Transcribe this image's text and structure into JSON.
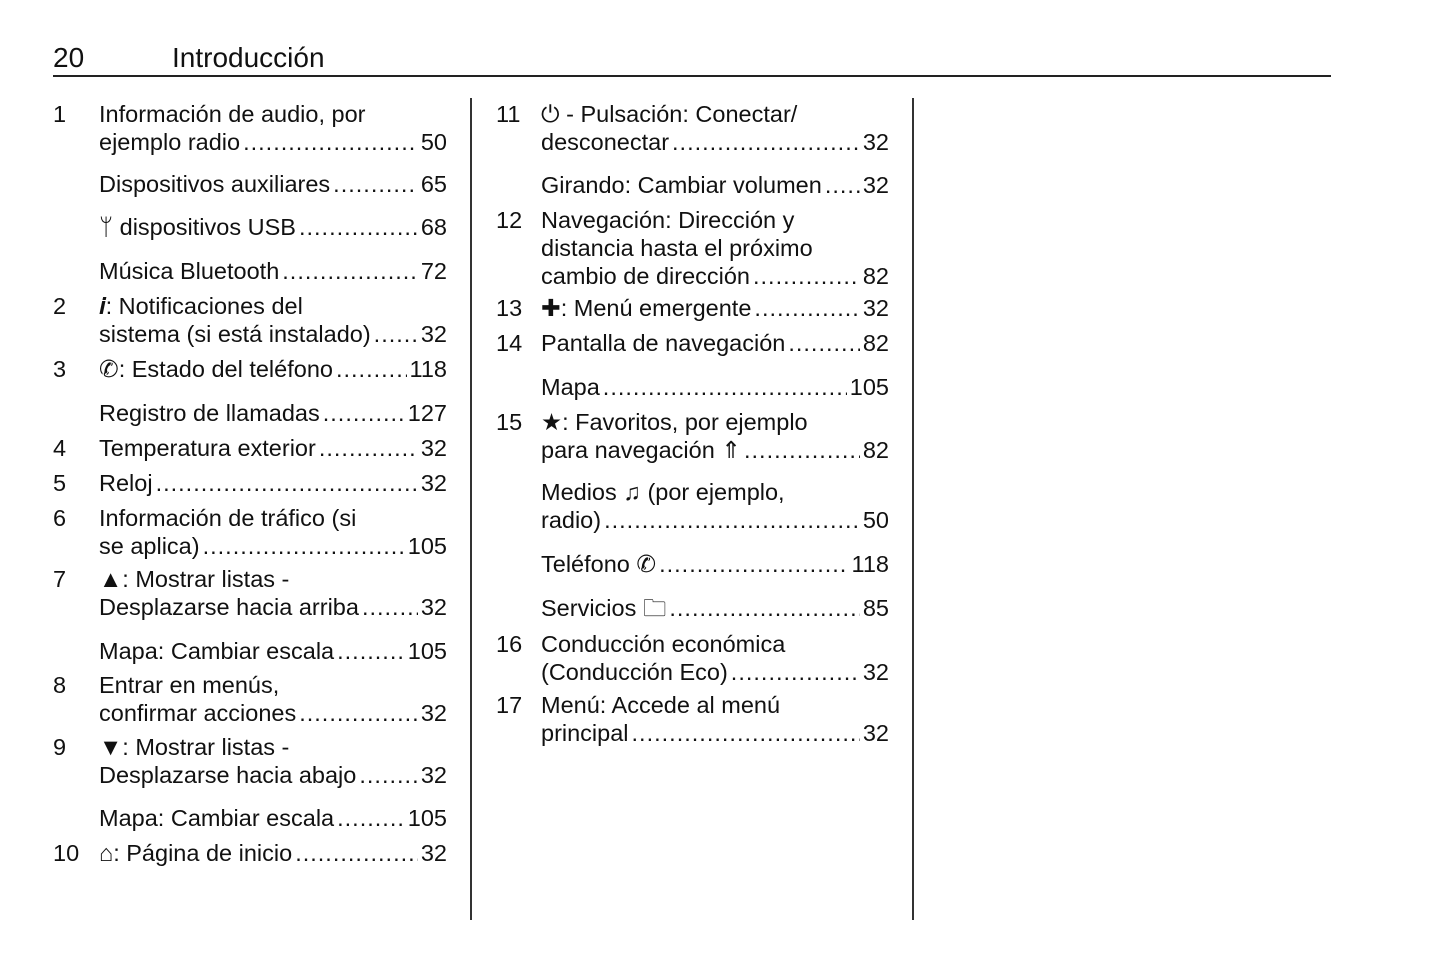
{
  "header": {
    "page_number": "20",
    "title": "Introducción"
  },
  "columns": [
    {
      "entries": [
        {
          "num": "1",
          "lines": [
            "Información de audio, por",
            "ejemplo radio"
          ],
          "page": "50"
        },
        {
          "num": "",
          "lines": [
            "Dispositivos auxiliares"
          ],
          "page": "65"
        },
        {
          "num": "",
          "lines": [
            "ᛘ dispositivos USB"
          ],
          "page": "68"
        },
        {
          "num": "",
          "lines": [
            "Música Bluetooth"
          ],
          "page": "72"
        },
        {
          "num": "2",
          "lines": [
            "𝒊: Notificaciones del",
            "sistema (si está instalado)"
          ],
          "page": "32"
        },
        {
          "num": "3",
          "lines": [
            "✆: Estado del teléfono"
          ],
          "page": "118"
        },
        {
          "num": "",
          "lines": [
            "Registro de llamadas"
          ],
          "page": "127"
        },
        {
          "num": "4",
          "lines": [
            "Temperatura exterior"
          ],
          "page": "32"
        },
        {
          "num": "5",
          "lines": [
            "Reloj"
          ],
          "page": "32"
        },
        {
          "num": "6",
          "lines": [
            "Información de tráfico (si",
            "se aplica)"
          ],
          "page": "105"
        },
        {
          "num": "7",
          "lines": [
            "▲: Mostrar listas -",
            "Desplazarse hacia arriba"
          ],
          "page": "32"
        },
        {
          "num": "",
          "lines": [
            "Mapa: Cambiar escala"
          ],
          "page": "105"
        },
        {
          "num": "8",
          "lines": [
            "Entrar en menús,",
            "confirmar acciones"
          ],
          "page": "32"
        },
        {
          "num": "9",
          "lines": [
            "▼: Mostrar listas -",
            "Desplazarse hacia abajo"
          ],
          "page": "32"
        },
        {
          "num": "",
          "lines": [
            "Mapa: Cambiar escala"
          ],
          "page": "105"
        },
        {
          "num": "10",
          "lines": [
            "⌂: Página de inicio"
          ],
          "page": "32"
        }
      ]
    },
    {
      "entries": [
        {
          "num": "11",
          "lines": [
            "⏻ - Pulsación: Conectar/",
            "desconectar"
          ],
          "page": "32"
        },
        {
          "num": "",
          "lines": [
            "Girando: Cambiar volumen"
          ],
          "page": "32"
        },
        {
          "num": "12",
          "lines": [
            "Navegación: Dirección y",
            "distancia hasta el próximo",
            "cambio de dirección"
          ],
          "page": "82"
        },
        {
          "num": "13",
          "lines": [
            "✚: Menú emergente"
          ],
          "page": "32"
        },
        {
          "num": "14",
          "lines": [
            "Pantalla de navegación"
          ],
          "page": "82"
        },
        {
          "num": "",
          "lines": [
            "Mapa"
          ],
          "page": "105"
        },
        {
          "num": "15",
          "lines": [
            "★: Favoritos, por ejemplo",
            "para navegación ⇑"
          ],
          "page": "82"
        },
        {
          "num": "",
          "lines": [
            "Medios ♫ (por ejemplo,",
            "radio)"
          ],
          "page": "50"
        },
        {
          "num": "",
          "lines": [
            "Teléfono ✆"
          ],
          "page": "118"
        },
        {
          "num": "",
          "lines": [
            "Servicios 🗀"
          ],
          "page": "85"
        },
        {
          "num": "16",
          "lines": [
            "Conducción económica",
            "(Conducción Eco)"
          ],
          "page": "32"
        },
        {
          "num": "17",
          "lines": [
            "Menú: Accede al menú",
            "principal"
          ],
          "page": "32"
        }
      ]
    }
  ]
}
